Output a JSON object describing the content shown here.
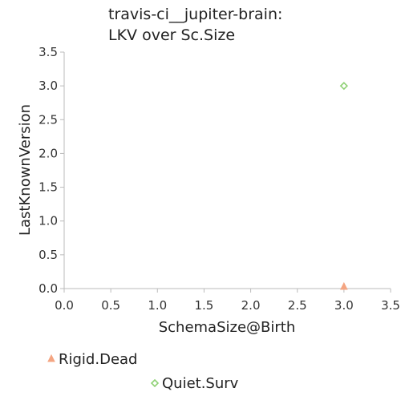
{
  "chart_data": {
    "type": "scatter",
    "title": [
      "travis-ci__jupiter-brain:",
      "LKV over Sc.Size"
    ],
    "xlabel": "SchemaSize@Birth",
    "ylabel": "LastKnownVersion",
    "xlim": [
      0.0,
      3.5
    ],
    "ylim": [
      0.0,
      3.5
    ],
    "xticks": [
      "0.0",
      "0.5",
      "1.0",
      "1.5",
      "2.0",
      "2.5",
      "3.0",
      "3.5"
    ],
    "yticks": [
      "0.0",
      "0.5",
      "1.0",
      "1.5",
      "2.0",
      "2.5",
      "3.0",
      "3.5"
    ],
    "grid": false,
    "legend_position": "bottom",
    "series": [
      {
        "name": "Rigid.Dead",
        "marker": "triangle",
        "color": "#f4a582",
        "points": [
          {
            "x": 3.0,
            "y": 0.0
          }
        ]
      },
      {
        "name": "Quiet.Surv",
        "marker": "diamond",
        "color": "#8fd175",
        "points": [
          {
            "x": 3.0,
            "y": 3.0
          }
        ]
      }
    ]
  }
}
